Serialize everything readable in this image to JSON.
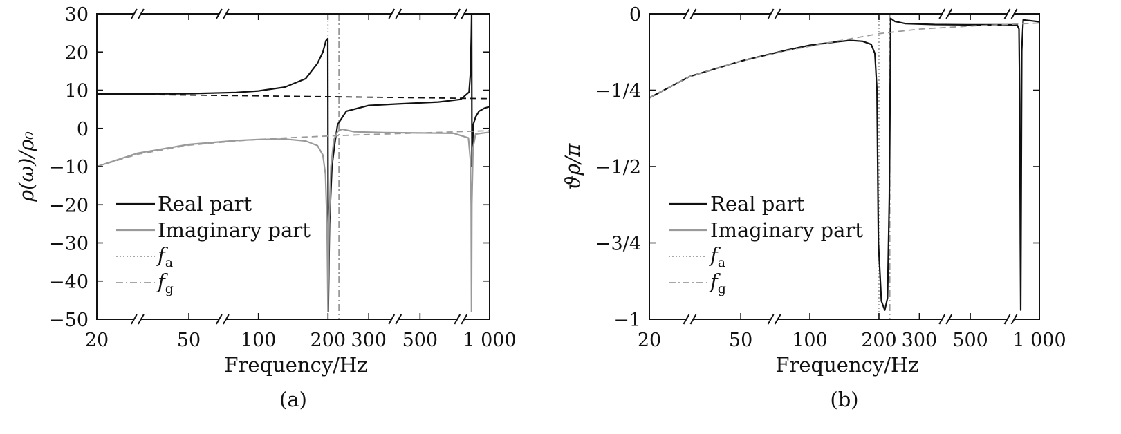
{
  "chart_data": [
    {
      "type": "line",
      "caption": "(a)",
      "xlabel": "Frequency/Hz",
      "ylabel": "ρ(ω)/ρ₀",
      "x_scale": "log",
      "xlim": [
        20,
        1000
      ],
      "ylim": [
        -50,
        30
      ],
      "x_ticks": [
        "20",
        "50",
        "100",
        "200",
        "300",
        "500",
        "1 000"
      ],
      "y_ticks": [
        "30",
        "20",
        "10",
        "0",
        "−10",
        "−20",
        "−30",
        "−40",
        "−50"
      ],
      "axis_breaks_at": [
        30,
        70,
        390,
        750
      ],
      "grid": false,
      "legend_position": "lower-left",
      "legend": [
        {
          "label": "Real part",
          "style": "solid",
          "color": "#111111"
        },
        {
          "label": "Imaginary part",
          "style": "solid",
          "color": "#9a9a9a"
        },
        {
          "symbol": "f",
          "sub": "a",
          "style": "dotted",
          "color": "#9a9a9a"
        },
        {
          "symbol": "f",
          "sub": "g",
          "style": "dashdot",
          "color": "#9a9a9a"
        }
      ],
      "f_a": 200,
      "f_g": 223,
      "series": [
        {
          "role": "real",
          "style": "solid",
          "color": "#111111",
          "x": [
            20,
            30,
            50,
            80,
            100,
            130,
            160,
            180,
            190,
            196,
            199.5,
            200.5,
            203,
            208,
            214,
            220,
            240,
            300,
            400,
            600,
            750,
            815,
            825,
            833,
            836,
            839,
            850,
            870,
            900,
            950,
            1000
          ],
          "y": [
            9,
            9,
            9.1,
            9.4,
            9.8,
            10.8,
            13,
            17,
            20,
            23,
            23.5,
            -48,
            -25,
            -10,
            -4,
            1,
            4.5,
            6,
            6.4,
            6.9,
            7.6,
            9.5,
            14,
            24,
            30,
            -10,
            1,
            3,
            4.5,
            5.3,
            5.7
          ]
        },
        {
          "role": "imaginary",
          "style": "solid",
          "color": "#9a9a9a",
          "x": [
            20,
            30,
            50,
            80,
            100,
            130,
            160,
            180,
            190,
            195,
            198,
            200,
            202,
            206,
            212,
            220,
            230,
            260,
            350,
            500,
            700,
            810,
            825,
            832,
            835,
            838,
            848,
            870,
            1000
          ],
          "y": [
            -10,
            -6.5,
            -4.2,
            -3.2,
            -2.9,
            -2.8,
            -3.3,
            -4.5,
            -7,
            -12,
            -25,
            -48,
            -25,
            -10,
            -3,
            -0.8,
            -0.2,
            -0.9,
            -1.1,
            -1.2,
            -1.3,
            -2.5,
            -8,
            -20,
            -48,
            -20,
            -5,
            -1.5,
            -1
          ]
        },
        {
          "role": "real-quasistatic",
          "style": "dashed",
          "color": "#111111",
          "x": [
            20,
            1000
          ],
          "y": [
            9,
            7.8
          ]
        },
        {
          "role": "imaginary-quasistatic",
          "style": "dashed",
          "color": "#9a9a9a",
          "x": [
            20,
            30,
            50,
            80,
            120,
            200,
            300,
            500,
            1000
          ],
          "y": [
            -10,
            -6.8,
            -4.4,
            -3.3,
            -2.6,
            -2,
            -1.6,
            -1.2,
            -0.6
          ]
        }
      ]
    },
    {
      "type": "line",
      "caption": "(b)",
      "xlabel": "Frequency/Hz",
      "ylabel": "ϑρ/π",
      "x_scale": "log",
      "xlim": [
        20,
        1000
      ],
      "ylim": [
        -1,
        0
      ],
      "x_ticks": [
        "20",
        "50",
        "100",
        "200",
        "300",
        "500",
        "1 000"
      ],
      "y_ticks": [
        "0",
        "−1/4",
        "−1/2",
        "−3/4",
        "−1"
      ],
      "axis_breaks_at": [
        30,
        70,
        390,
        750
      ],
      "grid": false,
      "legend_position": "lower-left",
      "legend": [
        {
          "label": "Real part",
          "style": "solid",
          "color": "#111111"
        },
        {
          "label": "Imaginary part",
          "style": "solid",
          "color": "#9a9a9a"
        },
        {
          "symbol": "f",
          "sub": "a",
          "style": "dotted",
          "color": "#9a9a9a"
        },
        {
          "symbol": "f",
          "sub": "g",
          "style": "dashdot",
          "color": "#9a9a9a"
        }
      ],
      "f_a": 200,
      "f_g": 223,
      "series": [
        {
          "role": "phase",
          "style": "solid",
          "color": "#111111",
          "x": [
            20,
            30,
            50,
            80,
            100,
            130,
            150,
            170,
            185,
            192,
            196,
            199,
            205,
            212,
            218,
            222,
            225,
            235,
            260,
            350,
            500,
            700,
            800,
            815,
            822,
            826,
            829,
            833,
            838,
            850,
            900,
            1000
          ],
          "y": [
            -0.275,
            -0.205,
            -0.155,
            -0.118,
            -0.103,
            -0.092,
            -0.087,
            -0.09,
            -0.1,
            -0.13,
            -0.25,
            -0.75,
            -0.94,
            -0.97,
            -0.93,
            -0.6,
            -0.015,
            -0.025,
            -0.032,
            -0.035,
            -0.036,
            -0.036,
            -0.036,
            -0.05,
            -0.3,
            -0.75,
            -0.97,
            -0.6,
            -0.12,
            -0.02,
            -0.022,
            -0.026
          ]
        },
        {
          "role": "phase-quasistatic",
          "style": "dashed",
          "color": "#9a9a9a",
          "x": [
            20,
            30,
            50,
            80,
            120,
            200,
            300,
            500,
            1000
          ],
          "y": [
            -0.275,
            -0.205,
            -0.155,
            -0.12,
            -0.095,
            -0.065,
            -0.05,
            -0.04,
            -0.03
          ]
        }
      ]
    }
  ]
}
